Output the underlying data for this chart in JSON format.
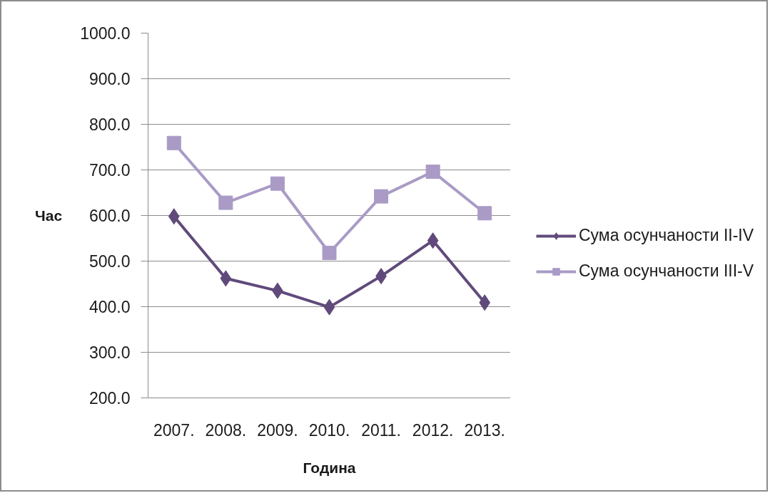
{
  "chart_data": {
    "type": "line",
    "xlabel": "Година",
    "ylabel": "Час",
    "categories": [
      "2007.",
      "2008.",
      "2009.",
      "2010.",
      "2011.",
      "2012.",
      "2013."
    ],
    "series": [
      {
        "name": "Сума осунчаности II-IV",
        "color": "#604a7b",
        "marker": "diamond",
        "values": [
          598,
          462,
          435,
          399,
          467,
          545,
          409
        ]
      },
      {
        "name": "Сума осунчаности III-V",
        "color": "#a99bc6",
        "marker": "square",
        "values": [
          759,
          628,
          670,
          518,
          642,
          696,
          605
        ]
      }
    ],
    "ylim": [
      200,
      1000
    ],
    "yticks": [
      {
        "value": 200,
        "label": "200.0"
      },
      {
        "value": 300,
        "label": "300.0"
      },
      {
        "value": 400,
        "label": "400.0"
      },
      {
        "value": 500,
        "label": "500.0"
      },
      {
        "value": 600,
        "label": "600.0"
      },
      {
        "value": 700,
        "label": "700.0"
      },
      {
        "value": 800,
        "label": "800.0"
      },
      {
        "value": 900,
        "label": "900.0"
      },
      {
        "value": 1000,
        "label": "1000.0"
      }
    ],
    "grid": "y",
    "legend": "right"
  }
}
